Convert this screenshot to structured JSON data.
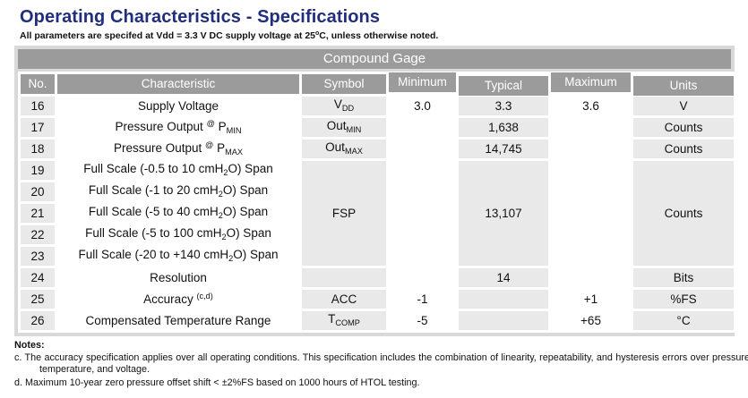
{
  "title": "Operating Characteristics - Specifications",
  "subtitle": {
    "pre": "All parameters are specifed at Vdd = 3.3 V DC supply voltage at 25",
    "sup": "o",
    "post": "C, unless otherwise noted."
  },
  "colors": {
    "title_blue": "#212e7d",
    "header_gray": "#9b9b9b",
    "shaded_cell_gray": "#e9e9e9",
    "frame_gray": "#d9d9d9"
  },
  "table": {
    "banner": "Compound Gage",
    "columns": [
      "No.",
      "Characteristic",
      "Symbol",
      "Minimum",
      "Typical",
      "Maximum",
      "Units"
    ],
    "rows": [
      {
        "no": "16",
        "char": {
          "segs": [
            [
              "Supply Voltage",
              "n"
            ]
          ]
        },
        "symbol": {
          "segs": [
            [
              "V",
              "n"
            ],
            [
              "DD",
              "sub"
            ]
          ]
        },
        "min": "3.0",
        "typ": "3.3",
        "max": "3.6",
        "units": "V"
      },
      {
        "no": "17",
        "char": {
          "segs": [
            [
              "Pressure Output ",
              "n"
            ],
            [
              "@",
              "sup"
            ],
            [
              " P",
              "n"
            ],
            [
              "MIN",
              "sub"
            ]
          ]
        },
        "symbol": {
          "segs": [
            [
              "Out",
              "n"
            ],
            [
              "MIN",
              "sub"
            ]
          ]
        },
        "min": "",
        "typ": "1,638",
        "max": "",
        "units": "Counts"
      },
      {
        "no": "18",
        "char": {
          "segs": [
            [
              "Pressure Output ",
              "n"
            ],
            [
              "@",
              "sup"
            ],
            [
              " P",
              "n"
            ],
            [
              "MAX",
              "sub"
            ]
          ]
        },
        "symbol": {
          "segs": [
            [
              "Out",
              "n"
            ],
            [
              "MAX",
              "sub"
            ]
          ]
        },
        "min": "",
        "typ": "14,745",
        "max": "",
        "units": "Counts"
      },
      {
        "no": "19",
        "char": {
          "segs": [
            [
              "Full Scale (-0.5 to 10 cmH",
              "n"
            ],
            [
              "2",
              "sub"
            ],
            [
              "O) Span",
              "n"
            ]
          ]
        },
        "symbol": {
          "text": "FSP",
          "rowspan": 5
        },
        "min": "",
        "typ": {
          "text": "13,107",
          "rowspan": 5
        },
        "max": "",
        "units": {
          "text": "Counts",
          "rowspan": 5
        }
      },
      {
        "no": "20",
        "char": {
          "segs": [
            [
              "Full Scale (-1 to 20 cmH",
              "n"
            ],
            [
              "2",
              "sub"
            ],
            [
              "O) Span",
              "n"
            ]
          ]
        },
        "symbol": null,
        "min": "",
        "typ": null,
        "max": "",
        "units": null
      },
      {
        "no": "21",
        "char": {
          "segs": [
            [
              "Full Scale (-5 to 40 cmH",
              "n"
            ],
            [
              "2",
              "sub"
            ],
            [
              "O) Span",
              "n"
            ]
          ]
        },
        "symbol": null,
        "min": "",
        "typ": null,
        "max": "",
        "units": null
      },
      {
        "no": "22",
        "char": {
          "segs": [
            [
              "Full Scale (-5 to 100 cmH",
              "n"
            ],
            [
              "2",
              "sub"
            ],
            [
              "O) Span",
              "n"
            ]
          ]
        },
        "symbol": null,
        "min": "",
        "typ": null,
        "max": "",
        "units": null
      },
      {
        "no": "23",
        "char": {
          "segs": [
            [
              "Full Scale (-20 to +140 cmH",
              "n"
            ],
            [
              "2",
              "sub"
            ],
            [
              "O) Span",
              "n"
            ]
          ]
        },
        "symbol": null,
        "min": "",
        "typ": null,
        "max": "",
        "units": null
      },
      {
        "no": "24",
        "char": {
          "segs": [
            [
              "Resolution",
              "n"
            ]
          ]
        },
        "symbol": "",
        "min": "",
        "typ": "14",
        "max": "",
        "units": "Bits"
      },
      {
        "no": "25",
        "char": {
          "segs": [
            [
              "Accuracy ",
              "n"
            ],
            [
              "(c,d)",
              "sup"
            ]
          ]
        },
        "symbol": "ACC",
        "min": "-1",
        "typ": "",
        "max": "+1",
        "units": "%FS"
      },
      {
        "no": "26",
        "char": {
          "segs": [
            [
              "Compensated Temperature Range",
              "n"
            ]
          ]
        },
        "symbol": {
          "segs": [
            [
              "T",
              "n"
            ],
            [
              "COMP",
              "sub"
            ]
          ]
        },
        "min": "-5",
        "typ": "",
        "max": "+65",
        "units": "°C"
      }
    ]
  },
  "notes": {
    "label": "Notes:",
    "items": [
      "c. The accuracy specification applies over all operating conditions. This specification includes the combination of linearity, repeatability, and hysteresis errors over pressure, temperature, and voltage.",
      "d. Maximum 10-year zero pressure offset shift <  ±2%FS based on 1000 hours of HTOL testing."
    ]
  }
}
